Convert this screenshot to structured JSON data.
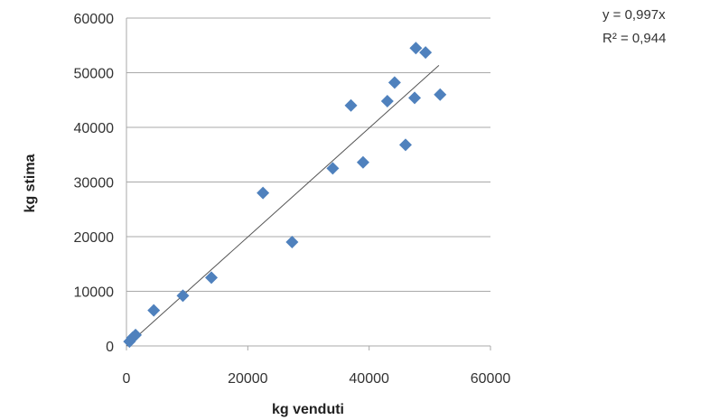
{
  "chart_data": {
    "type": "scatter",
    "xlabel": "kg  venduti",
    "ylabel": "kg stima",
    "xlim": [
      0,
      60000
    ],
    "ylim": [
      0,
      60000
    ],
    "xticks": [
      "0",
      "20000",
      "40000",
      "60000"
    ],
    "yticks": [
      "0",
      "10000",
      "20000",
      "30000",
      "40000",
      "50000",
      "60000"
    ],
    "grid": "horizontal",
    "marker_color": "#4f81bd",
    "trendline_color": "#555555",
    "trendline": {
      "slope": 0.997,
      "x_end": 51500
    },
    "annotations": [
      "y = 0,997x",
      "R² = 0,944"
    ],
    "points": [
      {
        "x": 500,
        "y": 800
      },
      {
        "x": 1000,
        "y": 1500
      },
      {
        "x": 1500,
        "y": 2000
      },
      {
        "x": 4500,
        "y": 6500
      },
      {
        "x": 9300,
        "y": 9200
      },
      {
        "x": 14000,
        "y": 12500
      },
      {
        "x": 22500,
        "y": 28000
      },
      {
        "x": 27300,
        "y": 19000
      },
      {
        "x": 34000,
        "y": 32500
      },
      {
        "x": 37000,
        "y": 44000
      },
      {
        "x": 39000,
        "y": 33600
      },
      {
        "x": 43000,
        "y": 44800
      },
      {
        "x": 44200,
        "y": 48200
      },
      {
        "x": 46000,
        "y": 36800
      },
      {
        "x": 47500,
        "y": 45400
      },
      {
        "x": 47700,
        "y": 54500
      },
      {
        "x": 49300,
        "y": 53700
      },
      {
        "x": 51700,
        "y": 46000
      }
    ]
  }
}
